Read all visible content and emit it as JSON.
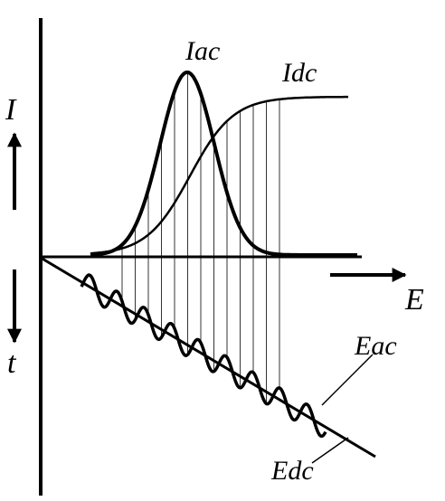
{
  "labels": {
    "iac": "Iac",
    "idc": "Idc",
    "i": "I",
    "t": "t",
    "e": "E",
    "eac": "Eac",
    "edc": "Edc"
  }
}
